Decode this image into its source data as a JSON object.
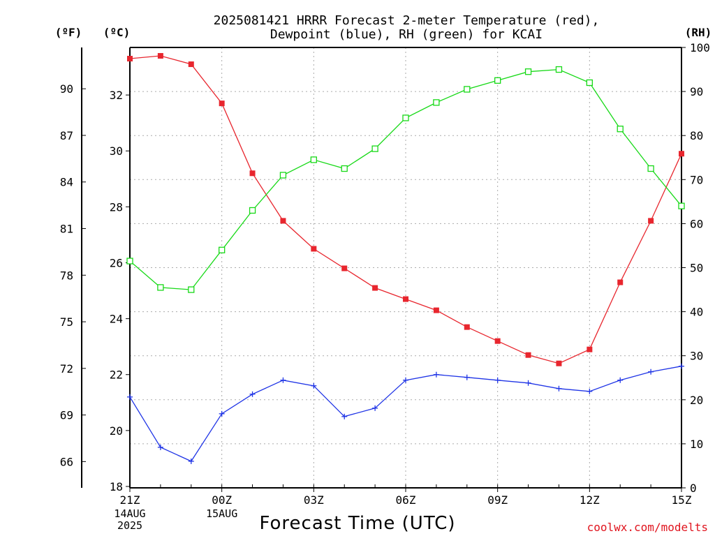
{
  "chart_data": {
    "type": "line",
    "title": "2025081421 HRRR Forecast 2-meter Temperature (red),",
    "subtitle": "Dewpoint (blue), RH (green) for KCAI",
    "xlabel": "Forecast Time (UTC)",
    "credit": "coolwx.com/modelts",
    "axes": {
      "left_outer_unit": "(ºF)",
      "left_inner_unit": "(ºC)",
      "right_unit": "(RH)",
      "celsius_range": [
        17.95,
        33.7
      ],
      "rh_range": [
        0,
        100
      ],
      "celsius_ticks": [
        "18",
        "20",
        "22",
        "24",
        "26",
        "28",
        "30",
        "32"
      ],
      "fahrenheit_ticks": [
        "66",
        "69",
        "72",
        "75",
        "78",
        "81",
        "84",
        "87",
        "90"
      ],
      "rh_ticks": [
        "0",
        "10",
        "20",
        "30",
        "40",
        "50",
        "60",
        "70",
        "80",
        "90",
        "100"
      ],
      "x_ticks": [
        {
          "hour": 0,
          "label": "21Z",
          "sub": [
            "14AUG",
            "2025"
          ]
        },
        {
          "hour": 3,
          "label": "00Z",
          "sub": [
            "15AUG"
          ]
        },
        {
          "hour": 6,
          "label": "03Z",
          "sub": []
        },
        {
          "hour": 9,
          "label": "06Z",
          "sub": []
        },
        {
          "hour": 12,
          "label": "09Z",
          "sub": []
        },
        {
          "hour": 15,
          "label": "12Z",
          "sub": []
        },
        {
          "hour": 18,
          "label": "15Z",
          "sub": []
        }
      ],
      "x_range": [
        0,
        18
      ],
      "grid": true
    },
    "series": [
      {
        "name": "Temperature",
        "color": "#e8262e",
        "axis": "celsius",
        "marker": "filled-square",
        "x": [
          0,
          1,
          2,
          3,
          4,
          5,
          6,
          7,
          8,
          9,
          10,
          11,
          12,
          13,
          14,
          15,
          16,
          17,
          18
        ],
        "values": [
          33.3,
          33.4,
          33.1,
          31.7,
          29.2,
          27.5,
          26.5,
          25.8,
          25.1,
          24.7,
          24.3,
          23.7,
          23.2,
          22.7,
          22.4,
          22.9,
          25.3,
          27.5,
          29.9
        ]
      },
      {
        "name": "Dewpoint",
        "color": "#1f34e6",
        "axis": "celsius",
        "marker": "plus",
        "x": [
          0,
          1,
          2,
          3,
          4,
          5,
          6,
          7,
          8,
          9,
          10,
          11,
          12,
          13,
          14,
          15,
          16,
          17,
          18
        ],
        "values": [
          21.2,
          19.4,
          18.9,
          20.6,
          21.3,
          21.8,
          21.6,
          20.5,
          20.8,
          21.8,
          22.0,
          21.9,
          21.8,
          21.7,
          21.5,
          21.4,
          21.8,
          22.1,
          22.3
        ]
      },
      {
        "name": "RH",
        "color": "#17d917",
        "axis": "rh",
        "marker": "open-square",
        "x": [
          0,
          1,
          2,
          3,
          4,
          5,
          6,
          7,
          8,
          9,
          10,
          11,
          12,
          13,
          14,
          15,
          16,
          17,
          18
        ],
        "values": [
          51.5,
          45.5,
          45.0,
          54.0,
          63.0,
          71.0,
          74.5,
          72.5,
          77.0,
          84.0,
          87.5,
          90.5,
          92.5,
          94.5,
          95.0,
          92.0,
          81.5,
          72.5,
          64.0
        ]
      }
    ]
  }
}
